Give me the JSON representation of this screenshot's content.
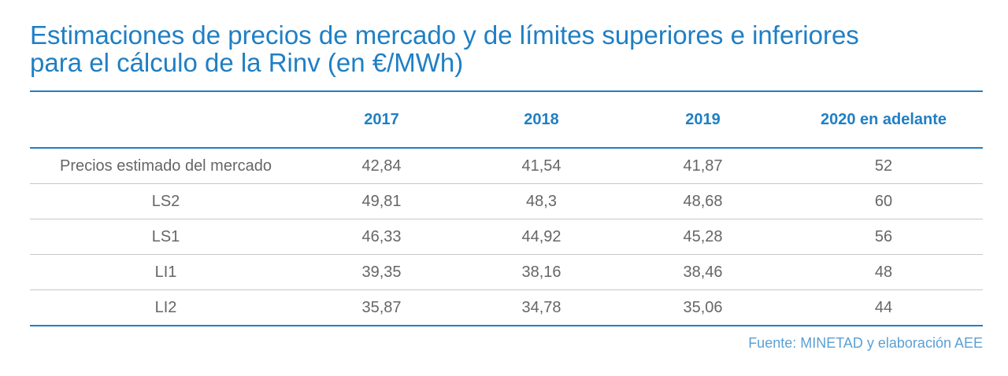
{
  "chart_data": {
    "type": "table",
    "title_lines": [
      "Estimaciones de precios de mercado y de límites superiores e inferiores",
      "para el cálculo de la Rinv (en €/MWh)"
    ],
    "columns": [
      "",
      "2017",
      "2018",
      "2019",
      "2020 en adelante"
    ],
    "rows": [
      {
        "label": "Precios estimado del mercado",
        "values": [
          "42,84",
          "41,54",
          "41,87",
          "52"
        ]
      },
      {
        "label": "LS2",
        "values": [
          "49,81",
          "48,3",
          "48,68",
          "60"
        ]
      },
      {
        "label": "LS1",
        "values": [
          "46,33",
          "44,92",
          "45,28",
          "56"
        ]
      },
      {
        "label": "LI1",
        "values": [
          "39,35",
          "38,16",
          "38,46",
          "48"
        ]
      },
      {
        "label": "LI2",
        "values": [
          "35,87",
          "34,78",
          "35,06",
          "44"
        ]
      }
    ],
    "source": "Fuente: MINETAD y elaboración AEE"
  },
  "colors": {
    "accent": "#1f7fc4",
    "text": "#666666",
    "source": "#5aa0d4",
    "divider": "#c8c8c8"
  }
}
